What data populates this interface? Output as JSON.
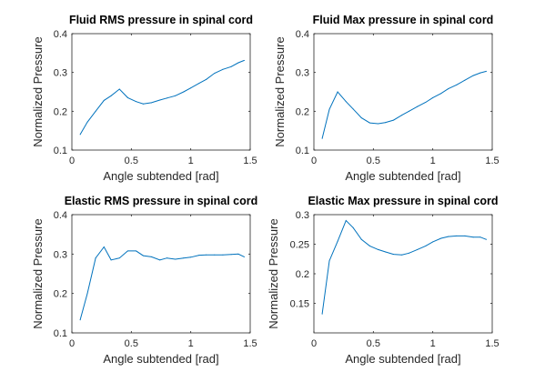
{
  "figure": {
    "background": "#ffffff",
    "axis_color": "#262626",
    "line_color": "#0072BD"
  },
  "chart_data": [
    {
      "type": "line",
      "title": "Fluid RMS pressure in spinal cord",
      "xlabel": "Angle subtended [rad]",
      "ylabel": "Normalized Pressure",
      "xlim": [
        0,
        1.5
      ],
      "ylim": [
        0.1,
        0.4
      ],
      "xticks": [
        0,
        0.5,
        1,
        1.5
      ],
      "xtick_labels": [
        "0",
        "0.5",
        "1",
        "1.5"
      ],
      "yticks": [
        0.1,
        0.2,
        0.3,
        0.4
      ],
      "ytick_labels": [
        "0.1",
        "0.2",
        "0.3",
        "0.4"
      ],
      "grid": false,
      "series": [
        {
          "x": [
            0.07,
            0.13,
            0.2,
            0.27,
            0.33,
            0.4,
            0.47,
            0.54,
            0.6,
            0.67,
            0.74,
            0.8,
            0.87,
            0.94,
            1.0,
            1.07,
            1.13,
            1.2,
            1.27,
            1.34,
            1.4,
            1.45
          ],
          "y": [
            0.14,
            0.172,
            0.2,
            0.228,
            0.24,
            0.257,
            0.235,
            0.225,
            0.219,
            0.222,
            0.229,
            0.234,
            0.24,
            0.25,
            0.26,
            0.272,
            0.282,
            0.298,
            0.308,
            0.315,
            0.325,
            0.331
          ]
        }
      ]
    },
    {
      "type": "line",
      "title": "Fluid Max pressure in spinal cord",
      "xlabel": "Angle subtended [rad]",
      "ylabel": "Normalized Pressure",
      "xlim": [
        0,
        1.5
      ],
      "ylim": [
        0.1,
        0.4
      ],
      "xticks": [
        0,
        0.5,
        1,
        1.5
      ],
      "xtick_labels": [
        "0",
        "0.5",
        "1",
        "1.5"
      ],
      "yticks": [
        0.1,
        0.2,
        0.3,
        0.4
      ],
      "ytick_labels": [
        "0.1",
        "0.2",
        "0.3",
        "0.4"
      ],
      "grid": false,
      "series": [
        {
          "x": [
            0.07,
            0.13,
            0.2,
            0.27,
            0.33,
            0.4,
            0.47,
            0.54,
            0.6,
            0.67,
            0.74,
            0.8,
            0.87,
            0.94,
            1.0,
            1.07,
            1.13,
            1.2,
            1.27,
            1.34,
            1.4,
            1.45
          ],
          "y": [
            0.13,
            0.205,
            0.25,
            0.225,
            0.206,
            0.183,
            0.17,
            0.168,
            0.171,
            0.177,
            0.19,
            0.2,
            0.212,
            0.223,
            0.235,
            0.246,
            0.258,
            0.268,
            0.28,
            0.292,
            0.299,
            0.303
          ]
        }
      ]
    },
    {
      "type": "line",
      "title": "Elastic RMS pressure in spinal cord",
      "xlabel": "Angle subtended [rad]",
      "ylabel": "Normalized Pressure",
      "xlim": [
        0,
        1.5
      ],
      "ylim": [
        0.1,
        0.4
      ],
      "xticks": [
        0,
        0.5,
        1,
        1.5
      ],
      "xtick_labels": [
        "0",
        "0.5",
        "1",
        "1.5"
      ],
      "yticks": [
        0.1,
        0.2,
        0.3,
        0.4
      ],
      "ytick_labels": [
        "0.1",
        "0.2",
        "0.3",
        "0.4"
      ],
      "grid": false,
      "series": [
        {
          "x": [
            0.07,
            0.13,
            0.2,
            0.27,
            0.33,
            0.4,
            0.47,
            0.54,
            0.6,
            0.67,
            0.74,
            0.8,
            0.87,
            0.94,
            1.0,
            1.07,
            1.13,
            1.2,
            1.27,
            1.34,
            1.4,
            1.45
          ],
          "y": [
            0.133,
            0.2,
            0.29,
            0.318,
            0.285,
            0.29,
            0.308,
            0.308,
            0.296,
            0.293,
            0.285,
            0.29,
            0.287,
            0.29,
            0.292,
            0.297,
            0.298,
            0.298,
            0.298,
            0.299,
            0.3,
            0.293
          ]
        }
      ]
    },
    {
      "type": "line",
      "title": "Elastic Max pressure in spinal cord",
      "xlabel": "Angle subtended [rad]",
      "ylabel": "Normalized Pressure",
      "xlim": [
        0,
        1.5
      ],
      "ylim": [
        0.1,
        0.3
      ],
      "xticks": [
        0,
        0.5,
        1,
        1.5
      ],
      "xtick_labels": [
        "0",
        "0.5",
        "1",
        "1.5"
      ],
      "yticks": [
        0.15,
        0.2,
        0.25,
        0.3
      ],
      "ytick_labels": [
        "0.15",
        "0.2",
        "0.25",
        "0.3"
      ],
      "grid": false,
      "series": [
        {
          "x": [
            0.07,
            0.13,
            0.2,
            0.27,
            0.33,
            0.4,
            0.47,
            0.54,
            0.6,
            0.67,
            0.74,
            0.8,
            0.87,
            0.94,
            1.0,
            1.07,
            1.13,
            1.2,
            1.27,
            1.34,
            1.4,
            1.45
          ],
          "y": [
            0.132,
            0.222,
            0.255,
            0.29,
            0.278,
            0.258,
            0.247,
            0.241,
            0.237,
            0.233,
            0.232,
            0.235,
            0.241,
            0.247,
            0.254,
            0.26,
            0.263,
            0.264,
            0.264,
            0.262,
            0.262,
            0.258
          ]
        }
      ]
    }
  ]
}
